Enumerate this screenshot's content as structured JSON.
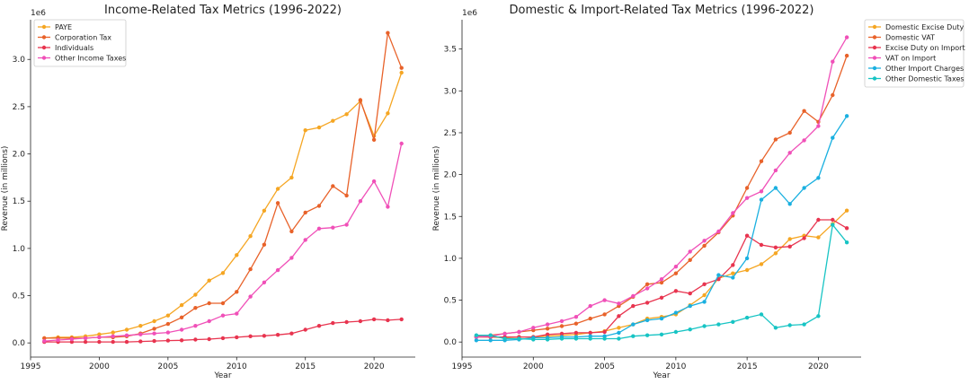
{
  "chart_data": [
    {
      "type": "line",
      "title": "Income-Related Tax Metrics (1996-2022)",
      "xlabel": "Year",
      "ylabel": "Revenue (in millions)",
      "y_offset_label": "1e6",
      "xlim": [
        1995,
        2023
      ],
      "ylim": [
        -150000,
        3420000
      ],
      "xticks": [
        1995,
        2000,
        2005,
        2010,
        2015,
        2020
      ],
      "yticks": [
        0,
        500000,
        1000000,
        1500000,
        2000000,
        2500000,
        3000000
      ],
      "ytick_labels": [
        "0.0",
        "0.5",
        "1.0",
        "1.5",
        "2.0",
        "2.5",
        "3.0"
      ],
      "legend_position": "upper-left",
      "x": [
        1996,
        1997,
        1998,
        1999,
        2000,
        2001,
        2002,
        2003,
        2004,
        2005,
        2006,
        2007,
        2008,
        2009,
        2010,
        2011,
        2012,
        2013,
        2014,
        2015,
        2016,
        2017,
        2018,
        2019,
        2020,
        2021,
        2022
      ],
      "series": [
        {
          "name": "PAYE",
          "color": "#f5a623",
          "values": [
            50000,
            60000,
            60000,
            70000,
            90000,
            110000,
            140000,
            180000,
            230000,
            290000,
            400000,
            510000,
            660000,
            740000,
            930000,
            1130000,
            1400000,
            1630000,
            1750000,
            2250000,
            2280000,
            2350000,
            2420000,
            2560000,
            2190000,
            2430000,
            2860000
          ]
        },
        {
          "name": "Corporation Tax",
          "color": "#e8622a",
          "values": [
            50000,
            50000,
            50000,
            50000,
            60000,
            60000,
            70000,
            100000,
            150000,
            200000,
            270000,
            370000,
            420000,
            420000,
            540000,
            780000,
            1040000,
            1480000,
            1180000,
            1380000,
            1450000,
            1660000,
            1560000,
            2570000,
            2150000,
            3280000,
            2910000
          ]
        },
        {
          "name": "Individuals",
          "color": "#e8344f",
          "values": [
            10000,
            10000,
            10000,
            10000,
            10000,
            10000,
            10000,
            15000,
            20000,
            25000,
            28000,
            35000,
            40000,
            50000,
            60000,
            70000,
            75000,
            85000,
            100000,
            140000,
            180000,
            210000,
            220000,
            230000,
            250000,
            240000,
            250000
          ]
        },
        {
          "name": "Other Income Taxes",
          "color": "#f050b8",
          "values": [
            20000,
            30000,
            40000,
            50000,
            60000,
            70000,
            80000,
            90000,
            100000,
            110000,
            140000,
            180000,
            230000,
            290000,
            310000,
            490000,
            640000,
            770000,
            900000,
            1090000,
            1210000,
            1220000,
            1250000,
            1500000,
            1710000,
            1440000,
            2110000
          ]
        }
      ]
    },
    {
      "type": "line",
      "title": "Domestic & Import-Related Tax Metrics (1996-2022)",
      "xlabel": "Year",
      "ylabel": "Revenue (in millions)",
      "y_offset_label": "1e6",
      "xlim": [
        1995,
        2023
      ],
      "ylim": [
        -180000,
        3850000
      ],
      "xticks": [
        1995,
        2000,
        2005,
        2010,
        2015,
        2020
      ],
      "yticks": [
        0,
        500000,
        1000000,
        1500000,
        2000000,
        2500000,
        3000000,
        3500000
      ],
      "ytick_labels": [
        "0.0",
        "0.5",
        "1.0",
        "1.5",
        "2.0",
        "2.5",
        "3.0",
        "3.5"
      ],
      "legend_position": "outside-upper-right",
      "x": [
        1996,
        1997,
        1998,
        1999,
        2000,
        2001,
        2002,
        2003,
        2004,
        2005,
        2006,
        2007,
        2008,
        2009,
        2010,
        2011,
        2012,
        2013,
        2014,
        2015,
        2016,
        2017,
        2018,
        2019,
        2020,
        2021,
        2022
      ],
      "series": [
        {
          "name": "Domestic Excise Duty",
          "color": "#f5a623",
          "values": [
            60000,
            60000,
            50000,
            60000,
            60000,
            70000,
            80000,
            90000,
            110000,
            130000,
            170000,
            210000,
            280000,
            300000,
            330000,
            440000,
            560000,
            760000,
            820000,
            860000,
            930000,
            1060000,
            1230000,
            1270000,
            1250000,
            1410000,
            1570000
          ]
        },
        {
          "name": "Domestic VAT",
          "color": "#e8622a",
          "values": [
            70000,
            80000,
            100000,
            120000,
            140000,
            160000,
            190000,
            220000,
            280000,
            330000,
            430000,
            540000,
            690000,
            710000,
            820000,
            980000,
            1150000,
            1310000,
            1510000,
            1840000,
            2160000,
            2420000,
            2500000,
            2760000,
            2630000,
            2950000,
            3420000
          ]
        },
        {
          "name": "Excise Duty on Import",
          "color": "#e8344f",
          "values": [
            60000,
            60000,
            60000,
            60000,
            60000,
            90000,
            100000,
            110000,
            110000,
            120000,
            310000,
            430000,
            470000,
            530000,
            610000,
            580000,
            690000,
            750000,
            920000,
            1270000,
            1160000,
            1130000,
            1140000,
            1240000,
            1460000,
            1460000,
            1360000
          ]
        },
        {
          "name": "VAT on Import",
          "color": "#f050b8",
          "values": [
            60000,
            70000,
            100000,
            120000,
            170000,
            210000,
            250000,
            300000,
            430000,
            500000,
            460000,
            550000,
            640000,
            750000,
            900000,
            1080000,
            1210000,
            1320000,
            1540000,
            1720000,
            1800000,
            2050000,
            2260000,
            2410000,
            2580000,
            3350000,
            3640000
          ]
        },
        {
          "name": "Other Import Charges",
          "color": "#1ab0e0",
          "values": [
            20000,
            20000,
            20000,
            30000,
            50000,
            50000,
            60000,
            60000,
            70000,
            70000,
            110000,
            210000,
            260000,
            280000,
            350000,
            430000,
            480000,
            800000,
            770000,
            1000000,
            1700000,
            1840000,
            1650000,
            1840000,
            1960000,
            2440000,
            2700000
          ]
        },
        {
          "name": "Other Domestic Taxes",
          "color": "#17c4c4",
          "values": [
            80000,
            80000,
            40000,
            40000,
            30000,
            30000,
            40000,
            40000,
            40000,
            40000,
            40000,
            70000,
            80000,
            90000,
            120000,
            150000,
            190000,
            210000,
            240000,
            290000,
            330000,
            170000,
            200000,
            210000,
            310000,
            1400000,
            1190000
          ]
        }
      ]
    }
  ]
}
